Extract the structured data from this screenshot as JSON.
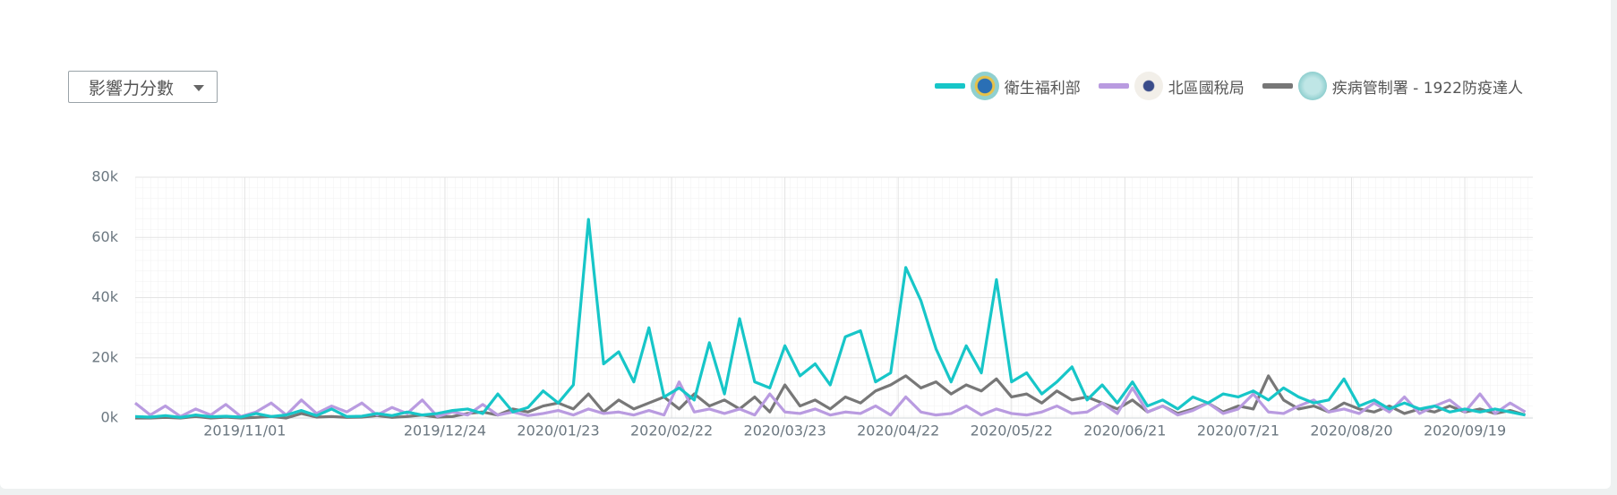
{
  "dropdown": "影響力分數",
  "chart_data": {
    "type": "line",
    "x": [
      "2019/10/03",
      "2019/10/07",
      "2019/10/11",
      "2019/10/15",
      "2019/10/19",
      "2019/10/23",
      "2019/10/27",
      "2019/10/31",
      "2019/11/04",
      "2019/11/08",
      "2019/11/12",
      "2019/11/16",
      "2019/11/20",
      "2019/11/24",
      "2019/11/28",
      "2019/12/02",
      "2019/12/06",
      "2019/12/10",
      "2019/12/14",
      "2019/12/18",
      "2019/12/22",
      "2019/12/26",
      "2019/12/30",
      "2020/01/03",
      "2020/01/07",
      "2020/01/11",
      "2020/01/15",
      "2020/01/19",
      "2020/01/23",
      "2020/01/27",
      "2020/01/31",
      "2020/02/04",
      "2020/02/08",
      "2020/02/12",
      "2020/02/16",
      "2020/02/20",
      "2020/02/24",
      "2020/02/28",
      "2020/03/03",
      "2020/03/07",
      "2020/03/11",
      "2020/03/15",
      "2020/03/19",
      "2020/03/23",
      "2020/03/27",
      "2020/03/31",
      "2020/04/04",
      "2020/04/08",
      "2020/04/12",
      "2020/04/16",
      "2020/04/20",
      "2020/04/24",
      "2020/04/28",
      "2020/05/02",
      "2020/05/06",
      "2020/05/10",
      "2020/05/14",
      "2020/05/18",
      "2020/05/22",
      "2020/05/26",
      "2020/05/30",
      "2020/06/03",
      "2020/06/07",
      "2020/06/11",
      "2020/06/15",
      "2020/06/19",
      "2020/06/23",
      "2020/06/27",
      "2020/07/01",
      "2020/07/05",
      "2020/07/09",
      "2020/07/13",
      "2020/07/17",
      "2020/07/21",
      "2020/07/25",
      "2020/07/29",
      "2020/08/02",
      "2020/08/06",
      "2020/08/10",
      "2020/08/14",
      "2020/08/18",
      "2020/08/22",
      "2020/08/26",
      "2020/08/30",
      "2020/09/03",
      "2020/09/07",
      "2020/09/11",
      "2020/09/15",
      "2020/09/19",
      "2020/09/23",
      "2020/09/27",
      "2020/10/01",
      "2020/10/05"
    ],
    "series": [
      {
        "name": "衛生福利部",
        "color": "#17c6c8",
        "values": [
          500,
          300,
          800,
          200,
          1000,
          400,
          600,
          300,
          1500,
          500,
          1000,
          2500,
          800,
          3000,
          500,
          600,
          1500,
          800,
          2000,
          1000,
          1500,
          2500,
          3000,
          1500,
          8000,
          2000,
          3500,
          9000,
          5000,
          11000,
          66000,
          18000,
          22000,
          12000,
          30000,
          7000,
          10000,
          6000,
          25000,
          8000,
          33000,
          12000,
          10000,
          24000,
          14000,
          18000,
          11000,
          27000,
          29000,
          12000,
          15000,
          50000,
          39000,
          23000,
          12000,
          24000,
          15000,
          46000,
          12000,
          15000,
          8000,
          12000,
          17000,
          6000,
          11000,
          5000,
          12000,
          4000,
          6000,
          3000,
          7000,
          5000,
          8000,
          7000,
          9000,
          6000,
          10000,
          7000,
          5000,
          6000,
          13000,
          4000,
          6000,
          3000,
          5000,
          3000,
          4000,
          2000,
          3000,
          2000,
          3000,
          2000,
          1000
        ]
      },
      {
        "name": "北區國稅局",
        "color": "#b99be0",
        "values": [
          5000,
          1000,
          4000,
          500,
          3000,
          1000,
          4500,
          500,
          2000,
          5000,
          1000,
          6000,
          1500,
          4000,
          2000,
          5000,
          1000,
          3500,
          1500,
          6000,
          500,
          2000,
          1000,
          4500,
          1000,
          2000,
          800,
          1500,
          2500,
          1000,
          3000,
          1500,
          2000,
          1000,
          2500,
          1000,
          12000,
          2000,
          3000,
          1500,
          3000,
          1000,
          8000,
          2000,
          1500,
          3000,
          1000,
          2000,
          1500,
          4000,
          1000,
          7000,
          2000,
          1000,
          1500,
          4000,
          1000,
          3000,
          1500,
          1000,
          2000,
          4000,
          1500,
          2000,
          5000,
          1500,
          10000,
          2000,
          4000,
          1000,
          2500,
          5000,
          1500,
          3000,
          8000,
          2000,
          1500,
          4000,
          6000,
          2000,
          3000,
          1500,
          5000,
          2000,
          7000,
          1500,
          4000,
          6000,
          2000,
          8000,
          1500,
          5000,
          2000
        ]
      },
      {
        "name": "疾病管制署 - 1922防疫達人",
        "color": "#777777",
        "values": [
          0,
          0,
          200,
          0,
          500,
          0,
          300,
          0,
          200,
          500,
          0,
          1500,
          300,
          500,
          200,
          300,
          800,
          200,
          500,
          1000,
          300,
          500,
          1500,
          2000,
          1000,
          3000,
          2000,
          4000,
          5000,
          3000,
          8000,
          2000,
          6000,
          3000,
          5000,
          7000,
          3000,
          8000,
          4000,
          6000,
          3000,
          7000,
          2000,
          11000,
          4000,
          6000,
          3000,
          7000,
          5000,
          9000,
          11000,
          14000,
          10000,
          12000,
          8000,
          11000,
          9000,
          13000,
          7000,
          8000,
          5000,
          9000,
          6000,
          7000,
          5000,
          3000,
          6000,
          2000,
          4000,
          1500,
          3000,
          5000,
          2000,
          4000,
          3000,
          14000,
          6000,
          3000,
          4000,
          2000,
          5000,
          3000,
          2000,
          4000,
          1500,
          3000,
          2000,
          4000,
          2000,
          3000,
          1500,
          2500,
          1000
        ]
      }
    ],
    "xlim": [
      "2019/10/03",
      "2020/10/07"
    ],
    "xticks": [
      "2019/11/01",
      "2019/12/24",
      "2020/01/23",
      "2020/02/22",
      "2020/03/23",
      "2020/04/22",
      "2020/05/22",
      "2020/06/21",
      "2020/07/21",
      "2020/08/20",
      "2020/09/19"
    ],
    "ylim": [
      0,
      80000
    ],
    "yticks": [
      {
        "value": 0,
        "label": "0k"
      },
      {
        "value": 20000,
        "label": "20k"
      },
      {
        "value": 40000,
        "label": "40k"
      },
      {
        "value": 60000,
        "label": "60k"
      },
      {
        "value": 80000,
        "label": "80k"
      }
    ],
    "grid": true
  }
}
